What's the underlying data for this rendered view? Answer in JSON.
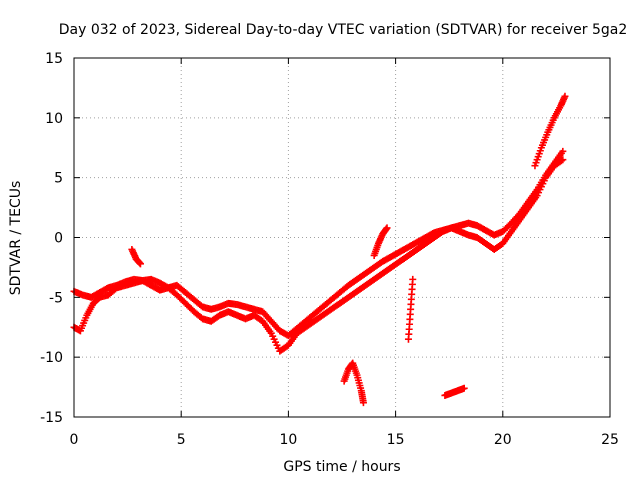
{
  "chart_data": {
    "type": "scatter",
    "title": "Day 032 of 2023, Sidereal Day-to-day VTEC variation (SDTVAR) for receiver 5ga2",
    "xlabel": "GPS time / hours",
    "ylabel": "SDTVAR / TECUs",
    "xlim": [
      0,
      25
    ],
    "ylim": [
      -15,
      15
    ],
    "xticks": [
      "0",
      "5",
      "10",
      "15",
      "20",
      "25"
    ],
    "yticks": [
      "-15",
      "-10",
      "-5",
      "0",
      "5",
      "10",
      "15"
    ],
    "grid": true,
    "marker": "plus",
    "color": "#ff0000",
    "series": [
      {
        "x": [
          0.0,
          0.3,
          0.6,
          0.9,
          1.2,
          1.6,
          2.0,
          2.4,
          2.8,
          3.2,
          3.6,
          4.0,
          4.4,
          4.8,
          5.2,
          5.6,
          6.0,
          6.4,
          6.8,
          7.2,
          7.6,
          8.0,
          8.4,
          8.8,
          9.2,
          9.6,
          10.0,
          10.4,
          10.8,
          11.2,
          11.6,
          12.0,
          12.4,
          12.8,
          13.2,
          13.6,
          14.0,
          14.4,
          14.8,
          15.2,
          15.6,
          16.0,
          16.4,
          16.8,
          17.2,
          17.6,
          18.0,
          18.4,
          18.8,
          19.2,
          19.6,
          20.0,
          20.4,
          20.8,
          21.2,
          21.6,
          22.0,
          22.4,
          22.8
        ],
        "y": [
          -7.5,
          -7.8,
          -6.5,
          -5.5,
          -5.0,
          -4.8,
          -4.2,
          -4.0,
          -3.8,
          -3.6,
          -3.5,
          -3.8,
          -4.2,
          -4.8,
          -5.5,
          -6.2,
          -6.8,
          -7.0,
          -6.5,
          -6.2,
          -6.5,
          -6.8,
          -6.5,
          -7.0,
          -8.0,
          -9.5,
          -9.0,
          -8.0,
          -7.5,
          -7.0,
          -6.5,
          -6.0,
          -5.5,
          -5.0,
          -4.5,
          -4.0,
          -3.5,
          -3.0,
          -2.5,
          -2.0,
          -1.5,
          -1.0,
          -0.5,
          0.0,
          0.5,
          0.8,
          0.5,
          0.2,
          0.0,
          -0.5,
          -1.0,
          -0.5,
          0.5,
          1.5,
          2.5,
          3.5,
          5.0,
          6.0,
          6.5
        ]
      },
      {
        "x": [
          0.0,
          0.4,
          0.8,
          1.2,
          1.6,
          2.0,
          2.4,
          2.8,
          3.2,
          3.6,
          4.0,
          4.4,
          4.8,
          5.2,
          5.6,
          6.0,
          6.4,
          6.8,
          7.2,
          7.6,
          8.0,
          8.4,
          8.8,
          9.2,
          9.6,
          10.0,
          10.4,
          10.8,
          11.2,
          11.6,
          12.0,
          12.4,
          12.8,
          13.2,
          13.6,
          14.0,
          14.4,
          14.8,
          15.2,
          15.6,
          16.0,
          16.4,
          16.8,
          17.2,
          17.6,
          18.0,
          18.4,
          18.8,
          19.2,
          19.6,
          20.0,
          20.4,
          20.8,
          21.2,
          21.6,
          22.0,
          22.4,
          22.8
        ],
        "y": [
          -4.5,
          -4.8,
          -5.0,
          -4.6,
          -4.2,
          -4.0,
          -3.7,
          -3.5,
          -3.6,
          -4.0,
          -4.4,
          -4.2,
          -4.0,
          -4.6,
          -5.2,
          -5.8,
          -6.0,
          -5.8,
          -5.5,
          -5.6,
          -5.8,
          -6.0,
          -6.2,
          -7.0,
          -7.8,
          -8.2,
          -7.6,
          -7.0,
          -6.4,
          -5.8,
          -5.2,
          -4.6,
          -4.0,
          -3.5,
          -3.0,
          -2.5,
          -2.0,
          -1.6,
          -1.2,
          -0.8,
          -0.4,
          0.0,
          0.4,
          0.6,
          0.8,
          1.0,
          1.2,
          1.0,
          0.6,
          0.2,
          0.5,
          1.2,
          2.0,
          3.0,
          4.0,
          5.2,
          6.2,
          7.2
        ]
      },
      {
        "x": [
          2.7,
          2.9,
          3.1
        ],
        "y": [
          -1.0,
          -1.8,
          -2.2
        ]
      },
      {
        "x": [
          12.6,
          12.8,
          13.0,
          13.2,
          13.4,
          13.5
        ],
        "y": [
          -12.0,
          -11.0,
          -10.5,
          -11.5,
          -12.8,
          -13.8
        ]
      },
      {
        "x": [
          14.0,
          14.2,
          14.4,
          14.6
        ],
        "y": [
          -1.5,
          -0.5,
          0.3,
          0.8
        ]
      },
      {
        "x": [
          15.6,
          15.7,
          15.8
        ],
        "y": [
          -8.5,
          -6.0,
          -3.5
        ]
      },
      {
        "x": [
          17.3,
          17.6,
          17.9,
          18.2
        ],
        "y": [
          -13.2,
          -13.0,
          -12.8,
          -12.6
        ]
      },
      {
        "x": [
          21.5,
          21.8,
          22.1,
          22.4,
          22.7,
          22.9
        ],
        "y": [
          6.0,
          7.5,
          8.8,
          10.0,
          11.0,
          11.8
        ]
      }
    ]
  }
}
